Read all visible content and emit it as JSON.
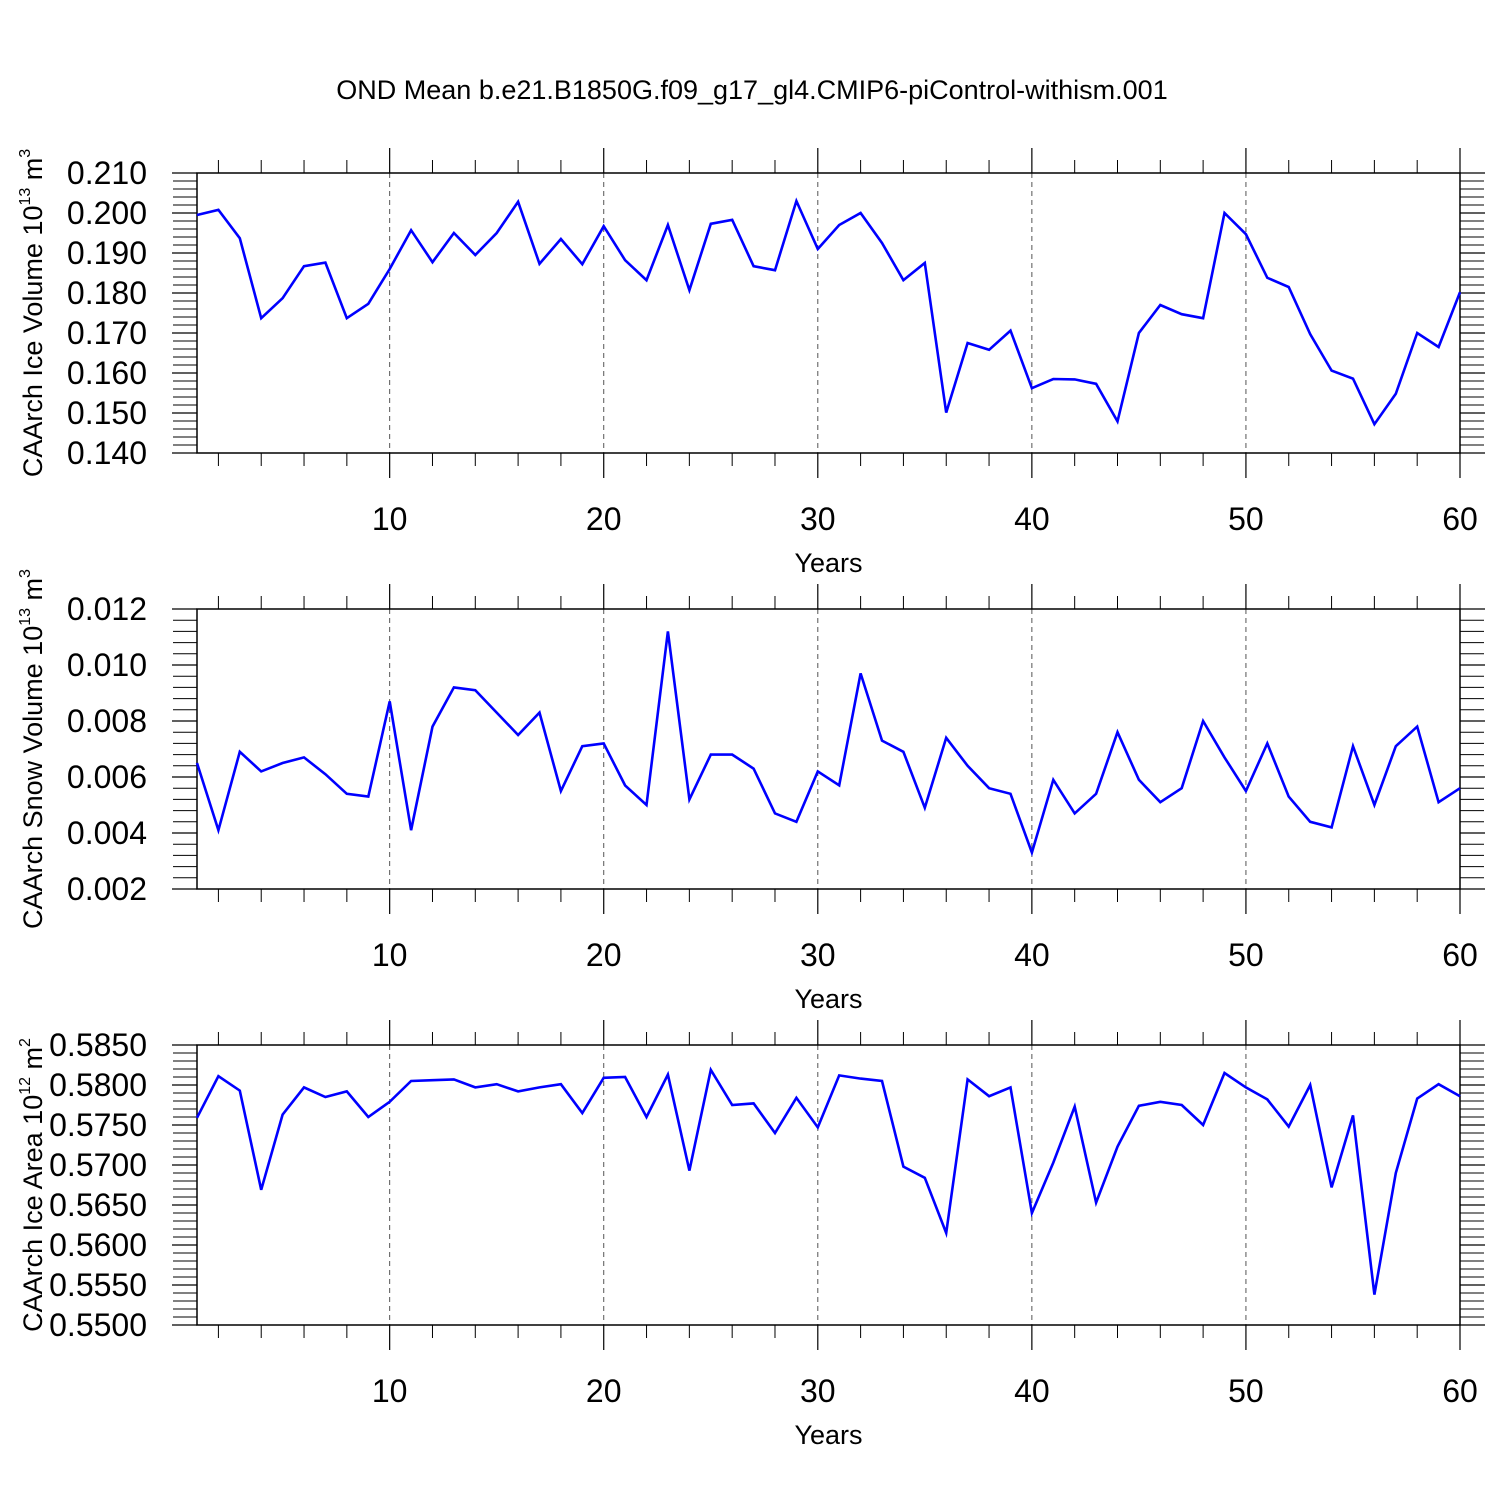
{
  "figure": {
    "title": "OND Mean b.e21.B1850G.f09_g17_gl4.CMIP6-piControl-withism.001",
    "colors": {
      "line": "#0000ff",
      "frame": "#000000",
      "grid": "#555555",
      "background": "#ffffff"
    }
  },
  "chart_data": [
    {
      "type": "line",
      "title": "OND Mean b.e21.B1850G.f09_g17_gl4.CMIP6-piControl-withism.001",
      "xlabel": "Years",
      "ylabel": {
        "base": "CAArch Ice Volume 10",
        "exp": "13",
        "unit": " m",
        "unit_exp": "3"
      },
      "xlim": [
        1,
        60
      ],
      "ylim": [
        0.14,
        0.21
      ],
      "x_ticks": [
        10,
        20,
        30,
        40,
        50,
        60
      ],
      "x_tick_labels": [
        "10",
        "20",
        "30",
        "40",
        "50",
        "60"
      ],
      "y_ticks": [
        0.14,
        0.15,
        0.16,
        0.17,
        0.18,
        0.19,
        0.2,
        0.21
      ],
      "y_tick_labels": [
        "0.140",
        "0.150",
        "0.160",
        "0.170",
        "0.180",
        "0.190",
        "0.200",
        "0.210"
      ],
      "grid": "vertical dashed at major x ticks",
      "series": [
        {
          "name": "CAArch Ice Volume",
          "color": "#0000ff",
          "x": [
            1,
            2,
            3,
            4,
            5,
            6,
            7,
            8,
            9,
            10,
            11,
            12,
            13,
            14,
            15,
            16,
            17,
            18,
            19,
            20,
            21,
            22,
            23,
            24,
            25,
            26,
            27,
            28,
            29,
            30,
            31,
            32,
            33,
            34,
            35,
            36,
            37,
            38,
            39,
            40,
            41,
            42,
            43,
            44,
            45,
            46,
            47,
            48,
            49,
            50,
            51,
            52,
            53,
            54,
            55,
            56,
            57,
            58,
            59,
            60
          ],
          "values": [
            0.1995,
            0.2008,
            0.1937,
            0.1737,
            0.1787,
            0.1867,
            0.1876,
            0.1737,
            0.1773,
            0.186,
            0.1957,
            0.1877,
            0.195,
            0.1895,
            0.195,
            0.2028,
            0.1873,
            0.1935,
            0.1872,
            0.1967,
            0.1882,
            0.1832,
            0.197,
            0.1807,
            0.1973,
            0.1983,
            0.1867,
            0.1857,
            0.203,
            0.191,
            0.197,
            0.2,
            0.1925,
            0.1832,
            0.1875,
            0.1501,
            0.1675,
            0.1658,
            0.1706,
            0.1562,
            0.1585,
            0.1584,
            0.1573,
            0.1479,
            0.17,
            0.177,
            0.1747,
            0.1737,
            0.2,
            0.1947,
            0.1838,
            0.1815,
            0.1697,
            0.1606,
            0.1586,
            0.1472,
            0.1548,
            0.17,
            0.1665,
            0.1802
          ]
        }
      ]
    },
    {
      "type": "line",
      "xlabel": "Years",
      "ylabel": {
        "base": "CAArch Snow Volume 10",
        "exp": "13",
        "unit": " m",
        "unit_exp": "3"
      },
      "xlim": [
        1,
        60
      ],
      "ylim": [
        0.002,
        0.012
      ],
      "x_ticks": [
        10,
        20,
        30,
        40,
        50,
        60
      ],
      "x_tick_labels": [
        "10",
        "20",
        "30",
        "40",
        "50",
        "60"
      ],
      "y_ticks": [
        0.002,
        0.004,
        0.006,
        0.008,
        0.01,
        0.012
      ],
      "y_tick_labels": [
        "0.002",
        "0.004",
        "0.006",
        "0.008",
        "0.010",
        "0.012"
      ],
      "grid": "vertical dashed at major x ticks",
      "series": [
        {
          "name": "CAArch Snow Volume",
          "color": "#0000ff",
          "x": [
            1,
            2,
            3,
            4,
            5,
            6,
            7,
            8,
            9,
            10,
            11,
            12,
            13,
            14,
            15,
            16,
            17,
            18,
            19,
            20,
            21,
            22,
            23,
            24,
            25,
            26,
            27,
            28,
            29,
            30,
            31,
            32,
            33,
            34,
            35,
            36,
            37,
            38,
            39,
            40,
            41,
            42,
            43,
            44,
            45,
            46,
            47,
            48,
            49,
            50,
            51,
            52,
            53,
            54,
            55,
            56,
            57,
            58,
            59,
            60
          ],
          "values": [
            0.0065,
            0.0041,
            0.0069,
            0.0062,
            0.0065,
            0.0067,
            0.0061,
            0.0054,
            0.0053,
            0.0087,
            0.0041,
            0.0078,
            0.0092,
            0.0091,
            0.0083,
            0.0075,
            0.0083,
            0.0055,
            0.0071,
            0.0072,
            0.0057,
            0.005,
            0.0112,
            0.0052,
            0.0068,
            0.0068,
            0.0063,
            0.0047,
            0.0044,
            0.0062,
            0.0057,
            0.0097,
            0.0073,
            0.0069,
            0.0049,
            0.0074,
            0.0064,
            0.0056,
            0.0054,
            0.0033,
            0.0059,
            0.0047,
            0.0054,
            0.0076,
            0.0059,
            0.0051,
            0.0056,
            0.008,
            0.0067,
            0.0055,
            0.0072,
            0.0053,
            0.0044,
            0.0042,
            0.0071,
            0.005,
            0.0071,
            0.0078,
            0.0051,
            0.0056
          ]
        }
      ]
    },
    {
      "type": "line",
      "xlabel": "Years",
      "ylabel": {
        "base": "CAArch Ice Area 10",
        "exp": "12",
        "unit": " m",
        "unit_exp": "2"
      },
      "xlim": [
        1,
        60
      ],
      "ylim": [
        0.55,
        0.585
      ],
      "x_ticks": [
        10,
        20,
        30,
        40,
        50,
        60
      ],
      "x_tick_labels": [
        "10",
        "20",
        "30",
        "40",
        "50",
        "60"
      ],
      "y_ticks": [
        0.55,
        0.555,
        0.56,
        0.565,
        0.57,
        0.575,
        0.58,
        0.585
      ],
      "y_tick_labels": [
        "0.5500",
        "0.5550",
        "0.5600",
        "0.5650",
        "0.5700",
        "0.5750",
        "0.5800",
        "0.5850"
      ],
      "grid": "vertical dashed at major x ticks",
      "series": [
        {
          "name": "CAArch Ice Area",
          "color": "#0000ff",
          "x": [
            1,
            2,
            3,
            4,
            5,
            6,
            7,
            8,
            9,
            10,
            11,
            12,
            13,
            14,
            15,
            16,
            17,
            18,
            19,
            20,
            21,
            22,
            23,
            24,
            25,
            26,
            27,
            28,
            29,
            30,
            31,
            32,
            33,
            34,
            35,
            36,
            37,
            38,
            39,
            40,
            41,
            42,
            43,
            44,
            45,
            46,
            47,
            48,
            49,
            50,
            51,
            52,
            53,
            54,
            55,
            56,
            57,
            58,
            59,
            60
          ],
          "values": [
            0.5759,
            0.5811,
            0.5793,
            0.5669,
            0.5763,
            0.5797,
            0.5785,
            0.5792,
            0.576,
            0.5779,
            0.5805,
            0.5806,
            0.5807,
            0.5797,
            0.5801,
            0.5792,
            0.5797,
            0.5801,
            0.5765,
            0.5809,
            0.581,
            0.576,
            0.5813,
            0.5693,
            0.5819,
            0.5775,
            0.5777,
            0.574,
            0.5784,
            0.5747,
            0.5812,
            0.5808,
            0.5805,
            0.5698,
            0.5684,
            0.5615,
            0.5807,
            0.5786,
            0.5797,
            0.564,
            0.5703,
            0.5773,
            0.5653,
            0.5723,
            0.5774,
            0.5779,
            0.5775,
            0.575,
            0.5815,
            0.5797,
            0.5782,
            0.5748,
            0.58,
            0.5672,
            0.5762,
            0.5538,
            0.569,
            0.5783,
            0.5801,
            0.5786
          ]
        }
      ]
    }
  ]
}
